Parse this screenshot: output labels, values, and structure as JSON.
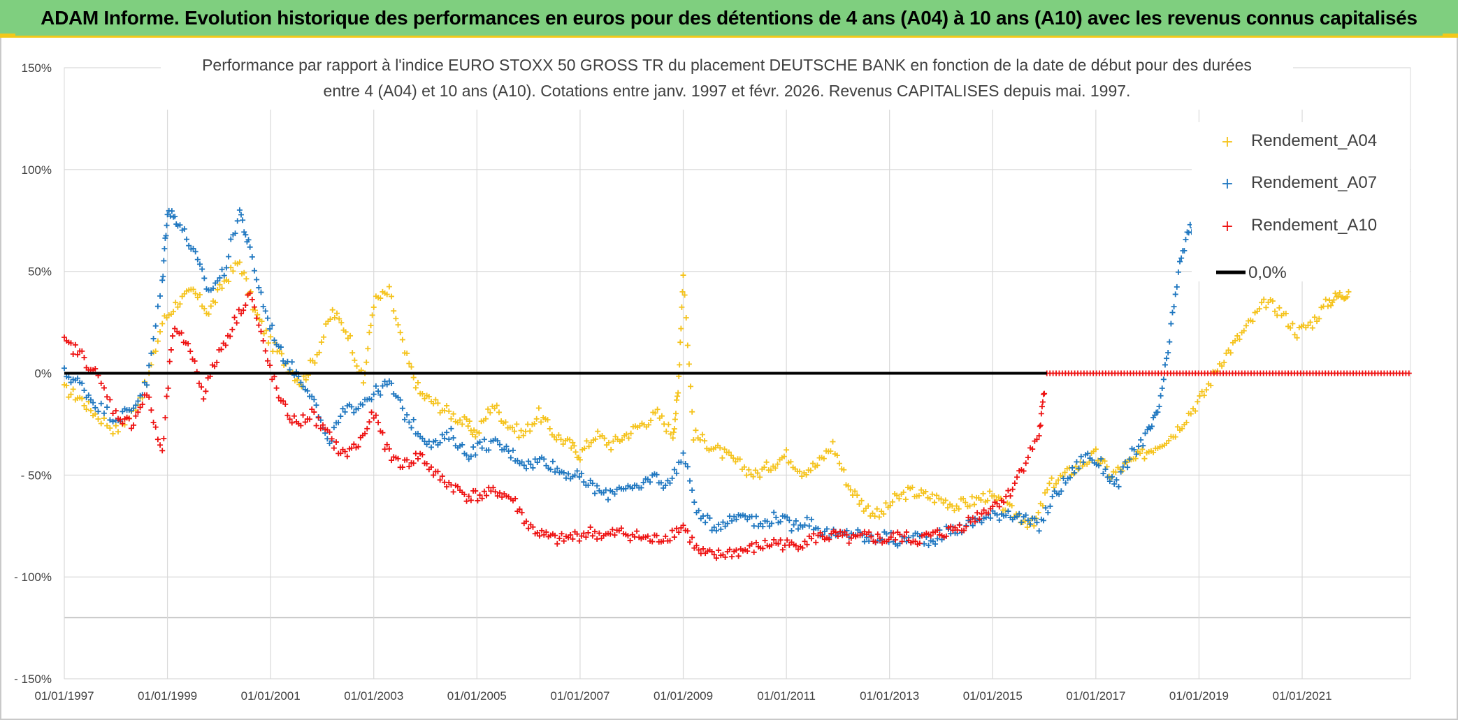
{
  "header": {
    "title": "ADAM Informe. Evolution historique des performances en euros pour des détentions de 4 ans (A04) à 10 ans (A10) avec les revenus connus capitalisés"
  },
  "chart_data": {
    "type": "scatter",
    "title_lines": [
      "Performance par rapport à l'indice EURO STOXX 50 GROSS TR  du placement DEUTSCHE BANK en fonction de la date de début pour des durées",
      "entre 4 (A04) et 10 ans (A10). Cotations entre janv. 1997 et févr. 2026. Revenus CAPITALISES depuis mai. 1997."
    ],
    "xlabel": "",
    "ylabel": "",
    "x_tick_labels": [
      "01/01/1997",
      "01/01/1999",
      "01/01/2001",
      "01/01/2003",
      "01/01/2005",
      "01/01/2007",
      "01/01/2009",
      "01/01/2011",
      "01/01/2013",
      "01/01/2015",
      "01/01/2017",
      "01/01/2019",
      "01/01/2021"
    ],
    "x_tick_years": [
      1997,
      1999,
      2001,
      2003,
      2005,
      2007,
      2009,
      2011,
      2013,
      2015,
      2017,
      2019,
      2021
    ],
    "xlim": [
      1997,
      2023.1
    ],
    "y_tick_labels": [
      "150%",
      "100%",
      "50%",
      "0%",
      "- 50%",
      "- 100%",
      "- 150%"
    ],
    "y_tick_values": [
      150,
      100,
      50,
      0,
      -50,
      -100,
      -150
    ],
    "ylim": [
      -150,
      150
    ],
    "colors": {
      "A04": "#f5c31c",
      "A07": "#1f77c0",
      "A10": "#ee1111",
      "zero": "#000000",
      "grid": "#d9d9d9"
    },
    "legend_position": "top-right",
    "legend": [
      "Rendement_A04",
      "Rendement_A07",
      "Rendement_A10",
      "0,0%"
    ],
    "series": [
      {
        "name": "Rendement_A04",
        "key": "A04",
        "x": [
          1997.0,
          1997.3,
          1997.6,
          1998.0,
          1998.3,
          1998.6,
          1998.9,
          1999.2,
          1999.5,
          1999.8,
          2000.1,
          2000.4,
          2000.7,
          2001.0,
          2001.3,
          2001.6,
          2001.9,
          2002.2,
          2002.5,
          2002.8,
          2003.0,
          2003.3,
          2003.6,
          2003.9,
          2004.2,
          2004.5,
          2004.8,
          2005.0,
          2005.3,
          2005.6,
          2005.9,
          2006.2,
          2006.5,
          2006.8,
          2007.0,
          2007.3,
          2007.6,
          2007.9,
          2008.2,
          2008.5,
          2008.8,
          2008.9,
          2009.0,
          2009.2,
          2009.5,
          2009.8,
          2010.1,
          2010.4,
          2010.7,
          2011.0,
          2011.3,
          2011.6,
          2011.9,
          2012.2,
          2012.5,
          2012.8,
          2013.1,
          2013.4,
          2013.7,
          2014.0,
          2014.3,
          2014.6,
          2014.9,
          2015.2,
          2015.5,
          2015.8,
          2016.1,
          2016.4,
          2016.7,
          2017.0,
          2017.3,
          2017.6,
          2017.9,
          2018.2,
          2018.5,
          2018.8,
          2019.1,
          2019.4,
          2019.7,
          2020.0,
          2020.3,
          2020.6,
          2020.9,
          2021.2,
          2021.5,
          2021.7,
          2021.9
        ],
        "y": [
          -8,
          -12,
          -20,
          -28,
          -20,
          -5,
          25,
          35,
          40,
          30,
          45,
          55,
          30,
          15,
          5,
          -5,
          10,
          30,
          20,
          -5,
          35,
          40,
          10,
          -10,
          -15,
          -20,
          -25,
          -30,
          -15,
          -25,
          -30,
          -20,
          -30,
          -35,
          -40,
          -30,
          -35,
          -30,
          -25,
          -20,
          -30,
          -10,
          50,
          -30,
          -35,
          -40,
          -45,
          -50,
          -45,
          -40,
          -48,
          -45,
          -35,
          -55,
          -65,
          -70,
          -62,
          -58,
          -60,
          -62,
          -65,
          -63,
          -60,
          -65,
          -70,
          -75,
          -55,
          -50,
          -45,
          -40,
          -50,
          -45,
          -40,
          -35,
          -30,
          -20,
          -10,
          5,
          15,
          25,
          35,
          30,
          20,
          25,
          35,
          38,
          40
        ]
      },
      {
        "name": "Rendement_A07",
        "key": "A07",
        "x": [
          1997.0,
          1997.3,
          1997.6,
          1998.0,
          1998.3,
          1998.6,
          1998.9,
          1999.0,
          1999.2,
          1999.5,
          1999.8,
          2000.1,
          2000.4,
          2000.6,
          2000.9,
          2001.2,
          2001.5,
          2001.8,
          2002.1,
          2002.4,
          2002.7,
          2003.0,
          2003.3,
          2003.6,
          2003.9,
          2004.2,
          2004.5,
          2004.8,
          2005.1,
          2005.4,
          2005.7,
          2006.0,
          2006.3,
          2006.6,
          2006.9,
          2007.2,
          2007.5,
          2007.8,
          2008.1,
          2008.4,
          2008.7,
          2009.0,
          2009.3,
          2009.6,
          2009.9,
          2010.2,
          2010.5,
          2010.8,
          2011.1,
          2011.4,
          2011.7,
          2012.0,
          2012.3,
          2012.6,
          2012.9,
          2013.2,
          2013.5,
          2013.8,
          2014.1,
          2014.4,
          2014.7,
          2015.0,
          2015.3,
          2015.6,
          2015.9,
          2016.2,
          2016.5,
          2016.8,
          2017.1,
          2017.4,
          2017.7,
          2018.0,
          2018.2,
          2018.4,
          2018.6,
          2018.8,
          2019.0
        ],
        "y": [
          0,
          -5,
          -15,
          -22,
          -18,
          -5,
          45,
          80,
          75,
          60,
          40,
          50,
          80,
          60,
          30,
          10,
          0,
          -10,
          -35,
          -20,
          -15,
          -10,
          -5,
          -20,
          -30,
          -35,
          -30,
          -40,
          -35,
          -35,
          -40,
          -45,
          -42,
          -48,
          -50,
          -55,
          -60,
          -55,
          -58,
          -50,
          -55,
          -40,
          -70,
          -75,
          -72,
          -68,
          -75,
          -70,
          -75,
          -72,
          -78,
          -80,
          -78,
          -82,
          -80,
          -83,
          -80,
          -82,
          -78,
          -76,
          -72,
          -70,
          -68,
          -72,
          -75,
          -60,
          -50,
          -40,
          -45,
          -55,
          -40,
          -30,
          -20,
          10,
          50,
          70,
          75
        ]
      },
      {
        "name": "Rendement_A10",
        "key": "A10",
        "x": [
          1997.0,
          1997.3,
          1997.6,
          1998.0,
          1998.3,
          1998.6,
          1998.9,
          1999.1,
          1999.4,
          1999.7,
          2000.0,
          2000.3,
          2000.6,
          2000.9,
          2001.2,
          2001.5,
          2001.8,
          2002.1,
          2002.4,
          2002.7,
          2003.0,
          2003.3,
          2003.6,
          2003.9,
          2004.2,
          2004.5,
          2004.8,
          2005.1,
          2005.4,
          2005.7,
          2006.0,
          2006.3,
          2006.6,
          2006.9,
          2007.2,
          2007.5,
          2007.8,
          2008.1,
          2008.4,
          2008.7,
          2009.0,
          2009.3,
          2009.6,
          2009.9,
          2010.2,
          2010.5,
          2010.8,
          2011.1,
          2011.4,
          2011.7,
          2012.0,
          2012.3,
          2012.6,
          2012.9,
          2013.2,
          2013.5,
          2013.8,
          2014.1,
          2014.4,
          2014.7,
          2015.0,
          2015.3,
          2015.6,
          2015.9,
          2016.0
        ],
        "y": [
          15,
          10,
          0,
          -20,
          -25,
          -10,
          -40,
          20,
          15,
          -10,
          10,
          25,
          40,
          10,
          -15,
          -25,
          -20,
          -30,
          -40,
          -35,
          -20,
          -40,
          -45,
          -40,
          -50,
          -55,
          -60,
          -60,
          -58,
          -62,
          -75,
          -80,
          -82,
          -80,
          -78,
          -80,
          -78,
          -80,
          -82,
          -80,
          -75,
          -88,
          -90,
          -88,
          -87,
          -85,
          -83,
          -85,
          -82,
          -80,
          -80,
          -82,
          -80,
          -82,
          -80,
          -82,
          -80,
          -78,
          -75,
          -70,
          -65,
          -60,
          -45,
          -30,
          -10
        ]
      },
      {
        "name": "0,0%",
        "key": "zero",
        "x": [
          1997.0,
          2023.1
        ],
        "y": [
          0,
          0
        ]
      }
    ],
    "a10_zero_tail": {
      "x_start": 2016.05,
      "x_end": 2023.1,
      "value": 0
    }
  }
}
